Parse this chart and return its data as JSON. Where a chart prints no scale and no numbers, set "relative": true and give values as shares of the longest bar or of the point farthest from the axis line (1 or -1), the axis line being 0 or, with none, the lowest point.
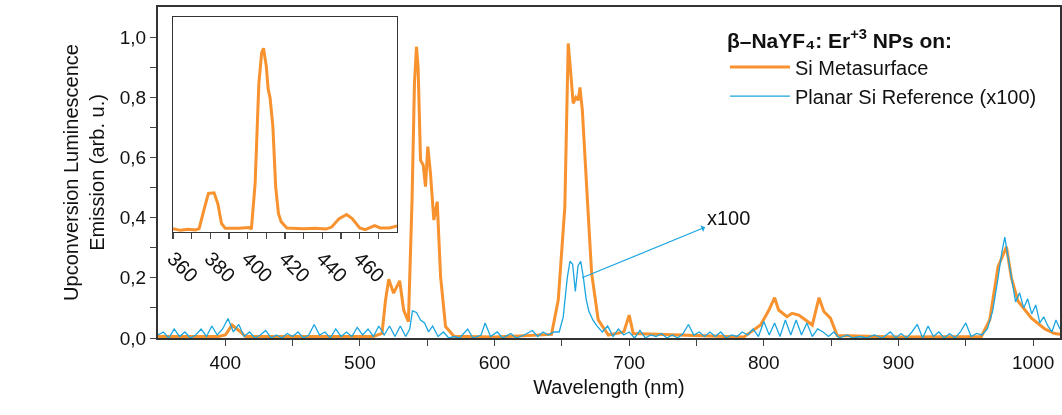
{
  "chart_data": [
    {
      "type": "line",
      "xlabel": "Wavelength (nm)",
      "ylabel": "Upconversion Luminescence\nEmission (arb. u.)",
      "legend_title": "β–NaYF₄: Er$^{+3}$ NPs on:",
      "legend": "top right",
      "grid": false,
      "marker": "none",
      "line_style": "solid",
      "xlim": [
        350,
        1020
      ],
      "xticks": [
        400,
        {
          "value": 450,
          "label": null
        },
        500,
        {
          "value": 550,
          "label": null
        },
        600,
        {
          "value": 650,
          "label": null
        },
        700,
        {
          "value": 750,
          "label": null
        },
        800,
        {
          "value": 850,
          "label": null
        },
        900,
        {
          "value": 950,
          "label": null
        },
        1000
      ],
      "ylim": [
        0,
        1.1
      ],
      "yticks": [
        {
          "value": 0,
          "label": "0,0"
        },
        {
          "value": 0.1,
          "label": null
        },
        {
          "value": 0.2,
          "label": "0,2"
        },
        {
          "value": 0.3,
          "label": null
        },
        {
          "value": 0.4,
          "label": "0,4"
        },
        {
          "value": 0.5,
          "label": null
        },
        {
          "value": 0.6,
          "label": "0,6"
        },
        {
          "value": 0.7,
          "label": null
        },
        {
          "value": 0.8,
          "label": "0,8"
        },
        {
          "value": 0.9,
          "label": null
        },
        {
          "value": 1.0,
          "label": "1,0"
        }
      ],
      "annotations": [
        {
          "text": "x100",
          "x": 665,
          "y": 0.2
        }
      ],
      "series": [
        {
          "name": "Si Metasurface",
          "color": "#f7922f",
          "x": [
            350,
            395,
            400,
            405,
            410,
            415,
            510,
            516.4,
            519,
            521.4,
            525,
            529.5,
            532.5,
            536,
            538.7,
            540.5,
            542,
            543.2,
            545,
            547,
            548.7,
            550.4,
            552.4,
            554.9,
            557.4,
            559.9,
            563.6,
            569.8,
            600,
            642.3,
            647.3,
            652.2,
            654.7,
            656.2,
            658.4,
            660.4,
            662.2,
            663.4,
            665.2,
            668.4,
            672.1,
            677,
            684.5,
            696,
            700,
            703,
            785,
            797.6,
            803.8,
            808,
            811,
            817.2,
            821,
            826,
            831,
            836,
            841,
            844.6,
            849.5,
            854.5,
            900,
            961.6,
            967.8,
            974,
            980.2,
            983.9,
            988.9,
            998.8,
            1008.7,
            1016,
            1020
          ],
          "values": [
            0.005,
            0.005,
            0.01,
            0.043,
            0.025,
            0.005,
            0.005,
            0.015,
            0.126,
            0.195,
            0.149,
            0.19,
            0.093,
            0.054,
            0.458,
            0.846,
            0.968,
            0.9,
            0.591,
            0.575,
            0.503,
            0.636,
            0.547,
            0.392,
            0.453,
            0.204,
            0.038,
            0.006,
            0.003,
            0.012,
            0.126,
            0.436,
            0.979,
            0.901,
            0.78,
            0.8,
            0.79,
            0.833,
            0.757,
            0.503,
            0.215,
            0.06,
            0.01,
            0.02,
            0.076,
            0.015,
            0.003,
            0.043,
            0.093,
            0.134,
            0.093,
            0.071,
            0.082,
            0.076,
            0.06,
            0.043,
            0.134,
            0.088,
            0.066,
            0.008,
            0.003,
            0.005,
            0.06,
            0.237,
            0.303,
            0.2,
            0.122,
            0.066,
            0.03,
            0.015,
            0.012
          ]
        },
        {
          "name": "Planar Si Reference (x100)",
          "color": "#1ba6e0",
          "x": [
            350,
            354,
            358,
            362,
            366,
            370,
            374,
            378,
            382,
            386,
            390,
            394,
            398,
            402,
            406,
            410,
            414,
            418,
            422,
            426,
            430,
            434,
            438,
            442,
            446,
            450,
            454,
            458,
            462,
            466,
            470,
            474,
            478,
            482,
            486,
            490,
            494,
            498,
            502,
            506,
            510,
            514,
            518,
            522,
            526,
            530,
            534,
            537,
            539,
            542,
            545,
            548,
            551,
            554,
            558,
            562,
            566,
            570,
            574,
            580,
            584,
            590,
            593,
            597,
            602,
            606,
            612,
            616,
            622,
            628,
            632,
            636,
            640,
            644,
            648,
            651,
            654,
            656,
            658,
            660,
            662,
            664,
            666,
            668,
            670,
            673,
            676,
            680,
            684,
            688,
            692,
            696,
            700,
            704,
            708,
            712,
            716,
            720,
            724,
            728,
            732,
            736,
            740,
            744,
            748,
            752,
            756,
            760,
            764,
            768,
            772,
            776,
            780,
            784,
            788,
            792,
            796,
            800,
            804,
            808,
            812,
            816,
            820,
            824,
            828,
            832,
            836,
            840,
            844,
            848,
            852,
            856,
            862,
            866,
            872,
            876,
            882,
            888,
            894,
            898,
            902,
            906,
            910,
            914,
            918,
            922,
            926,
            930,
            934,
            938,
            942,
            946,
            950,
            954,
            958,
            962,
            966,
            970,
            974,
            977,
            979,
            981,
            984,
            987,
            990,
            993,
            996,
            999,
            1002,
            1005,
            1008,
            1011,
            1014,
            1017,
            1020
          ],
          "values": [
            0.01,
            0.02,
            0.0,
            0.03,
            0.005,
            0.02,
            0.0,
            0.01,
            0.03,
            0.005,
            0.04,
            0.01,
            0.03,
            0.065,
            0.02,
            0.045,
            0.005,
            0.02,
            0.0,
            0.01,
            0.025,
            0.0,
            0.01,
            0.0,
            0.015,
            0.005,
            0.02,
            0.0,
            0.01,
            0.045,
            0.01,
            0.02,
            0.0,
            0.03,
            0.005,
            0.02,
            0.005,
            0.035,
            0.01,
            0.03,
            0.005,
            0.04,
            0.01,
            0.04,
            0.005,
            0.04,
            0.005,
            0.03,
            0.09,
            0.085,
            0.06,
            0.05,
            0.02,
            0.04,
            0.005,
            0.02,
            0.0,
            0.005,
            0.0,
            0.03,
            0.0,
            0.01,
            0.05,
            0.005,
            0.02,
            0.0,
            0.015,
            0.0,
            0.01,
            0.025,
            0.005,
            0.02,
            0.01,
            0.02,
            0.02,
            0.07,
            0.2,
            0.255,
            0.245,
            0.155,
            0.24,
            0.255,
            0.2,
            0.13,
            0.09,
            0.06,
            0.04,
            0.02,
            0.04,
            0.005,
            0.03,
            0.01,
            0.02,
            0.0,
            0.025,
            0.0,
            0.01,
            0.005,
            0.015,
            0.0,
            0.01,
            0.0,
            0.015,
            0.045,
            0.01,
            0.02,
            0.005,
            0.02,
            0.005,
            0.02,
            0.0,
            0.01,
            0.005,
            0.02,
            0.01,
            0.03,
            0.005,
            0.055,
            0.01,
            0.05,
            0.005,
            0.06,
            0.01,
            0.06,
            0.01,
            0.05,
            0.005,
            0.03,
            0.02,
            0.005,
            0.02,
            0.0,
            0.01,
            0.0,
            0.005,
            0.0,
            0.01,
            0.0,
            0.02,
            0.0,
            0.015,
            0.0,
            0.02,
            0.045,
            0.0,
            0.04,
            0.005,
            0.02,
            0.0,
            0.015,
            0.0,
            0.02,
            0.05,
            0.005,
            0.015,
            0.01,
            0.03,
            0.09,
            0.2,
            0.29,
            0.335,
            0.28,
            0.2,
            0.12,
            0.15,
            0.1,
            0.13,
            0.08,
            0.11,
            0.05,
            0.07,
            0.04,
            0.02,
            0.06,
            0.03
          ]
        }
      ]
    },
    {
      "type": "line",
      "relative": true,
      "tick_labels": "x",
      "marker": "none",
      "line_style": "solid",
      "grid": false,
      "legend": false,
      "xlim": [
        360,
        480
      ],
      "xticks": [
        360,
        {
          "value": 370,
          "label": null
        },
        380,
        {
          "value": 390,
          "label": null
        },
        400,
        {
          "value": 410,
          "label": null
        },
        420,
        {
          "value": 430,
          "label": null
        },
        440,
        {
          "value": 450,
          "label": null
        },
        460,
        {
          "value": 470,
          "label": null
        }
      ],
      "series": [
        {
          "color": "#f7922f",
          "x": [
            360,
            364,
            368,
            372,
            374,
            377,
            379,
            382,
            384,
            386,
            388,
            395,
            401,
            402,
            404,
            406,
            407.5,
            408.5,
            410,
            411,
            412,
            413.5,
            415,
            416.5,
            418,
            421,
            430,
            436,
            442,
            445,
            449,
            453,
            456,
            460,
            463,
            468,
            471,
            476,
            480
          ],
          "values": [
            0.018,
            0.009,
            0.015,
            0.011,
            0.018,
            0.137,
            0.21,
            0.213,
            0.155,
            0.046,
            0.02,
            0.02,
            0.024,
            0.016,
            0.265,
            0.81,
            0.976,
            1.0,
            0.9,
            0.776,
            0.73,
            0.575,
            0.246,
            0.1,
            0.055,
            0.022,
            0.018,
            0.02,
            0.016,
            0.027,
            0.073,
            0.095,
            0.073,
            0.022,
            0.013,
            0.035,
            0.022,
            0.022,
            0.033
          ]
        }
      ]
    }
  ]
}
